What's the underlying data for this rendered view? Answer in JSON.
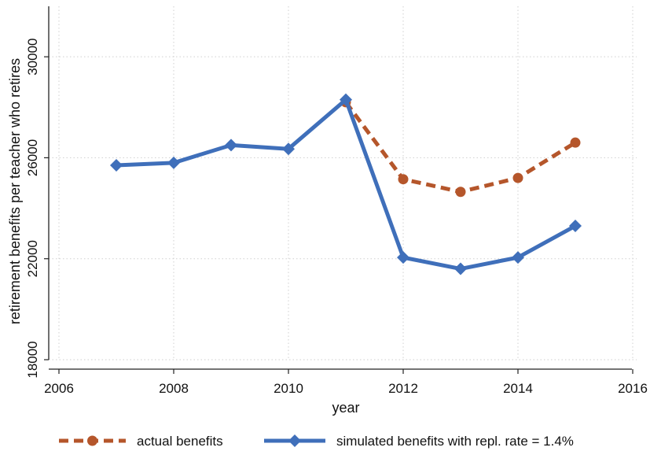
{
  "chart_data": {
    "type": "line",
    "xlabel": "year",
    "ylabel": "retirement benefits per teacher who retires",
    "xlim": [
      2006,
      2016
    ],
    "ylim": [
      18000,
      32000
    ],
    "xticks": [
      2006,
      2008,
      2010,
      2012,
      2014,
      2016
    ],
    "yticks": [
      18000,
      22000,
      26000,
      30000
    ],
    "grid": true,
    "legend_position": "bottom",
    "series": [
      {
        "name": "actual benefits",
        "color": "#b5562b",
        "style": "dashed",
        "marker": "circle",
        "x": [
          2011,
          2012,
          2013,
          2014,
          2015
        ],
        "y": [
          28200,
          25150,
          24650,
          25200,
          26600
        ]
      },
      {
        "name": "simulated benefits with repl. rate = 1.4%",
        "color": "#3f6fba",
        "style": "solid",
        "marker": "diamond",
        "x": [
          2007,
          2008,
          2009,
          2010,
          2011,
          2012,
          2013,
          2014,
          2015
        ],
        "y": [
          25700,
          25800,
          26500,
          26350,
          28300,
          22050,
          21600,
          22050,
          23300
        ]
      }
    ]
  }
}
